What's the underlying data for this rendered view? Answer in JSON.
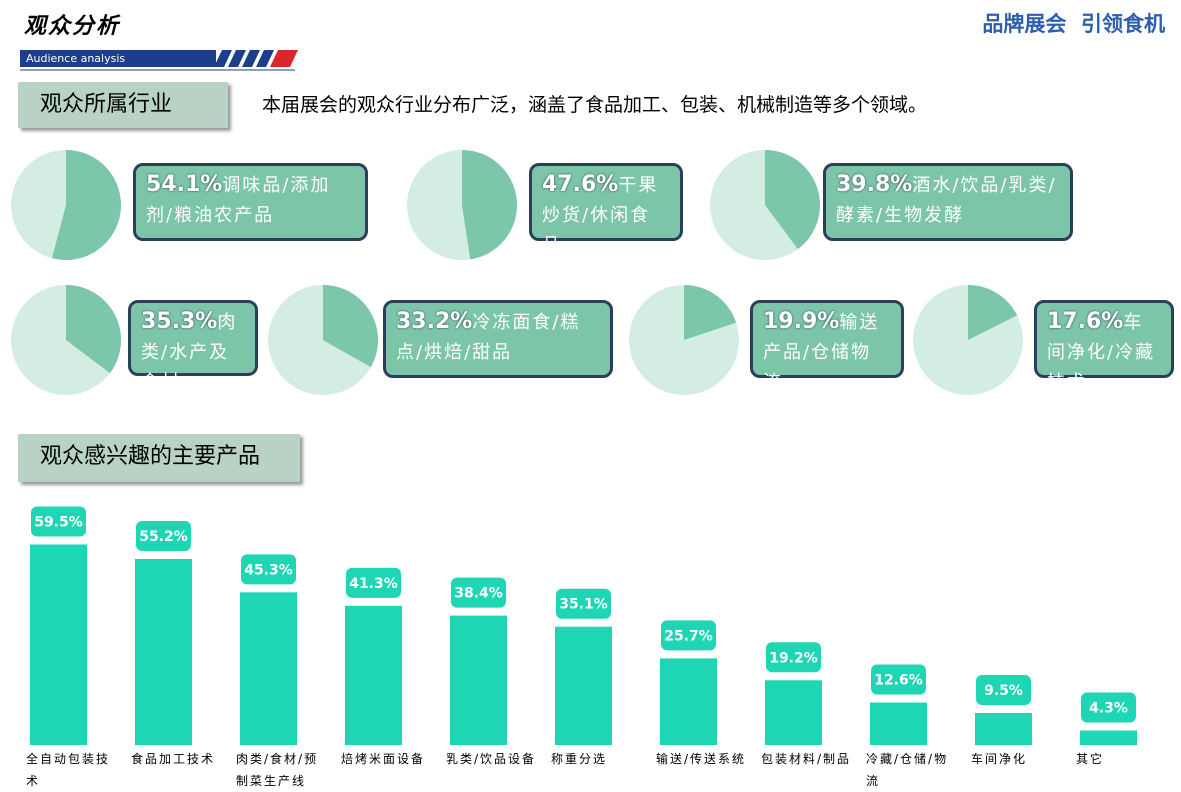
{
  "header": {
    "title": "观众分析",
    "subtitle": "Audience analysis",
    "brand": "品牌展会  引领食机"
  },
  "section1": {
    "title": "观众所属行业",
    "description": "本届展会的观众行业分布广泛，涵盖了食品加工、包装、机械制造等多个领域。"
  },
  "section2": {
    "title": "观众感兴趣的主要产品"
  },
  "chart_data": [
    {
      "type": "pie",
      "values": [
        54.1
      ],
      "value_labels": [
        "54.1%"
      ],
      "label": "调味品/添加剂/粮油农产品",
      "color": "#7cc6a9",
      "background_color": "#d4ede3"
    },
    {
      "type": "pie",
      "values": [
        47.6
      ],
      "value_labels": [
        "47.6%"
      ],
      "label": "干果炒货/休闲食品",
      "color": "#7cc6a9",
      "background_color": "#d4ede3"
    },
    {
      "type": "pie",
      "values": [
        39.8
      ],
      "value_labels": [
        "39.8%"
      ],
      "label": "酒水/饮品/乳类/酵素/生物发酵",
      "color": "#7cc6a9",
      "background_color": "#d4ede3"
    },
    {
      "type": "pie",
      "values": [
        35.3
      ],
      "value_labels": [
        "35.3%"
      ],
      "label": "肉类/水产及食材",
      "color": "#7cc6a9",
      "background_color": "#d4ede3"
    },
    {
      "type": "pie",
      "values": [
        33.2
      ],
      "value_labels": [
        "33.2%"
      ],
      "label": "冷冻面食/糕点/烘焙/甜品",
      "color": "#7cc6a9",
      "background_color": "#d4ede3"
    },
    {
      "type": "pie",
      "values": [
        19.9
      ],
      "value_labels": [
        "19.9%"
      ],
      "label": "输送产品/仓储物流",
      "color": "#7cc6a9",
      "background_color": "#d4ede3"
    },
    {
      "type": "pie",
      "values": [
        17.6
      ],
      "value_labels": [
        "17.6%"
      ],
      "label": "车间净化/冷藏技术",
      "color": "#7cc6a9",
      "background_color": "#d4ede3"
    },
    {
      "type": "bar",
      "color": "#1ed6b4",
      "categories": [
        "全自动包装技术",
        "食品加工技术",
        "肉类/食材/预制菜生产线",
        "焙烤米面设备",
        "乳类/饮品设备",
        "称重分选",
        "输送/传送系统",
        "包装材料/制品",
        "冷藏/仓储/物流",
        "车间净化",
        "其它"
      ],
      "values": [
        59.5,
        55.2,
        45.3,
        41.3,
        38.4,
        35.1,
        25.7,
        19.2,
        12.6,
        9.5,
        4.3
      ],
      "value_labels": [
        "59.5%",
        "55.2%",
        "45.3%",
        "41.3%",
        "38.4%",
        "35.1%",
        "25.7%",
        "19.2%",
        "12.6%",
        "9.5%",
        "4.3%"
      ]
    }
  ]
}
